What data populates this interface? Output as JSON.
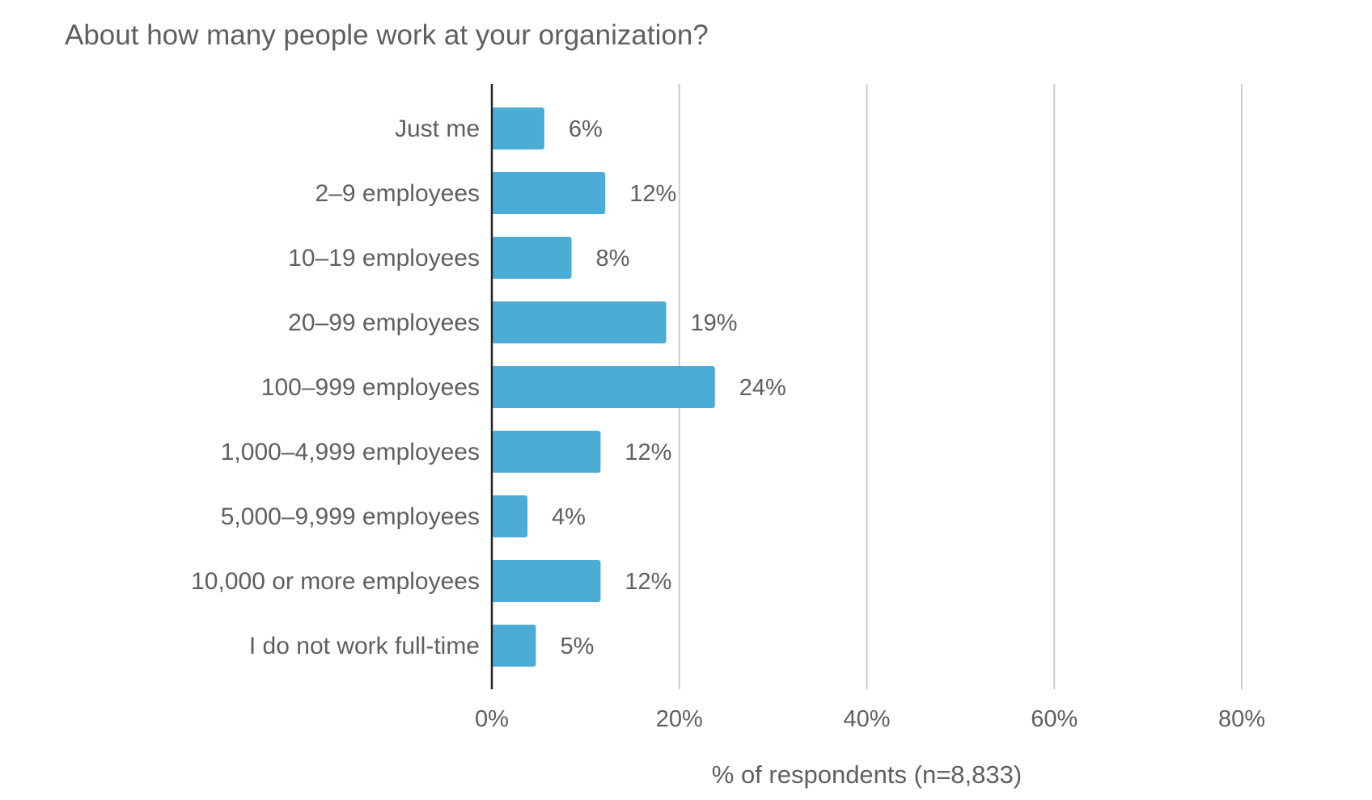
{
  "chart_data": {
    "type": "bar",
    "orientation": "horizontal",
    "title": "About how many people work at your organization?",
    "xlabel": "% of respondents (n=8,833)",
    "ylabel": "",
    "categories": [
      "Just me",
      "2–9 employees",
      "10–19 employees",
      "20–99 employees",
      "100–999 employees",
      "1,000–4,999 employees",
      "5,000–9,999 employees",
      "10,000 or more employees",
      "I do not work full-time"
    ],
    "values": [
      5.6,
      12.1,
      8.5,
      18.6,
      23.8,
      11.6,
      3.8,
      11.6,
      4.7
    ],
    "value_labels": [
      "6%",
      "12%",
      "8%",
      "19%",
      "24%",
      "12%",
      "4%",
      "12%",
      "5%"
    ],
    "xlim": [
      0,
      80
    ],
    "xticks": [
      0,
      20,
      40,
      60,
      80
    ],
    "xtick_labels": [
      "0%",
      "20%",
      "40%",
      "60%",
      "80%"
    ],
    "grid": "vertical",
    "legend": "none",
    "bar_color": "#4badd6",
    "gridline_color": "#cccccc",
    "axis_color": "#222222"
  }
}
